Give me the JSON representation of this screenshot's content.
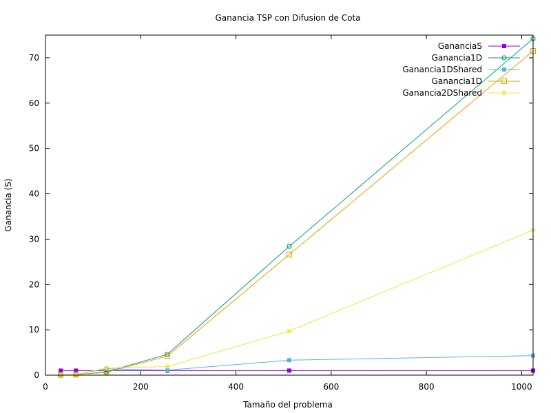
{
  "chart_data": {
    "type": "line",
    "title": "Ganancia TSP con Difusion de Cota",
    "xlabel": "Tamaño del problema",
    "ylabel": "Ganancia (S)",
    "xlim": [
      0,
      1024
    ],
    "ylim": [
      0,
      75
    ],
    "xticks": [
      0,
      200,
      400,
      600,
      800,
      1000
    ],
    "yticks": [
      0,
      10,
      20,
      30,
      40,
      50,
      60,
      70
    ],
    "legend_position": "top-right",
    "grid": false,
    "x": [
      32,
      64,
      128,
      256,
      512,
      1024
    ],
    "series": [
      {
        "name": "GananciaS",
        "color": "#9400d3",
        "marker": "filled-square",
        "values": [
          1,
          1,
          1,
          1,
          1,
          1
        ]
      },
      {
        "name": "Ganancia1D",
        "color": "#009e73",
        "marker": "circle",
        "values": [
          0.05,
          0.1,
          0.7,
          4.6,
          28.4,
          74.2
        ]
      },
      {
        "name": "Ganancia1DShared",
        "color": "#56b4e9",
        "marker": "filled-square",
        "values": [
          0.1,
          0.15,
          1.4,
          1.1,
          3.3,
          4.3
        ]
      },
      {
        "name": "Ganancia1D",
        "color": "#e69f00",
        "marker": "open-square",
        "values": [
          0.05,
          0.1,
          0.6,
          4.2,
          26.6,
          71.5
        ]
      },
      {
        "name": "Ganancia2DShared",
        "color": "#f0e442",
        "marker": "star",
        "values": [
          0.1,
          0.15,
          1.6,
          1.9,
          9.7,
          32.0
        ]
      }
    ]
  }
}
